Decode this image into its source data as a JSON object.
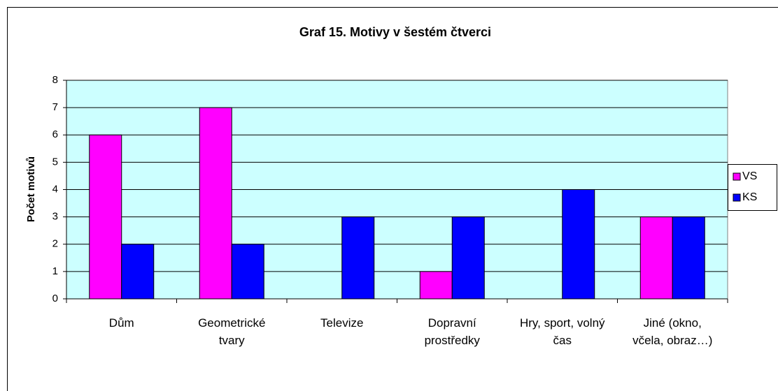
{
  "chart_data": {
    "type": "bar",
    "title": "Graf 15. Motivy v šestém čtverci",
    "y_label": "Počet motivů",
    "categories": [
      "Dům",
      "Geometrické tvary",
      "Televize",
      "Dopravní prostředky",
      "Hry, sport, volný čas",
      "Jiné (okno, včela, obraz…)"
    ],
    "series": [
      {
        "name": "VS",
        "color": "#ff00ff",
        "values": [
          6,
          7,
          0,
          1,
          0,
          3
        ]
      },
      {
        "name": "KS",
        "color": "#0000ff",
        "values": [
          2,
          2,
          3,
          3,
          4,
          3
        ]
      }
    ],
    "ylim": [
      0,
      8
    ],
    "yticks": [
      0,
      1,
      2,
      3,
      4,
      5,
      6,
      7,
      8
    ],
    "grid": true,
    "legend": "right",
    "plot_background": "#ccffff"
  }
}
